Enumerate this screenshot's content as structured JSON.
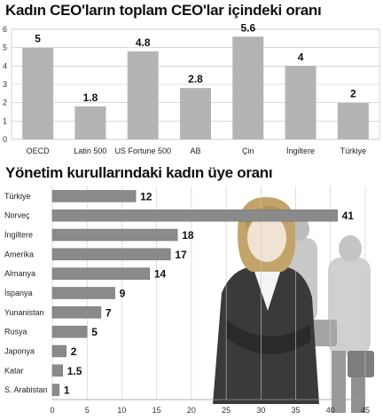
{
  "chart_data": [
    {
      "type": "bar",
      "orientation": "vertical",
      "title": "Kadın CEO'ların toplam CEO'lar içindeki oranı",
      "categories": [
        "OECD",
        "Latin 500",
        "US Fortune 500",
        "AB",
        "Çin",
        "İngiltere",
        "Türkiye"
      ],
      "values": [
        5,
        1.8,
        4.8,
        2.8,
        5.6,
        4,
        2
      ],
      "value_labels": [
        "5",
        "1.8",
        "4.8",
        "2.8",
        "5.6",
        "4",
        "2"
      ],
      "ylim": [
        0,
        6
      ],
      "yticks": [
        "0",
        "1",
        "2",
        "3",
        "4",
        "5",
        "6"
      ],
      "grid": true,
      "bar_color": "#b4b4b4"
    },
    {
      "type": "bar",
      "orientation": "horizontal",
      "title": "Yönetim kurullarındaki kadın üye oranı",
      "categories": [
        "Türkiye",
        "Norveç",
        "İngiltere",
        "Amerika",
        "Almanya",
        "İspanya",
        "Yunanistan",
        "Rusya",
        "Japonya",
        "Katar",
        "S. Arabistan"
      ],
      "values": [
        12,
        41,
        18,
        17,
        14,
        9,
        7,
        5,
        2,
        1.5,
        1
      ],
      "value_labels": [
        "12",
        "41",
        "18",
        "17",
        "14",
        "9",
        "7",
        "5",
        "2",
        "1.5",
        "1"
      ],
      "xlim": [
        0,
        45
      ],
      "xticks": [
        "0",
        "5",
        "10",
        "15",
        "20",
        "25",
        "30",
        "35",
        "40",
        "45"
      ],
      "grid": true,
      "bar_color": "#8a8a8a"
    }
  ]
}
